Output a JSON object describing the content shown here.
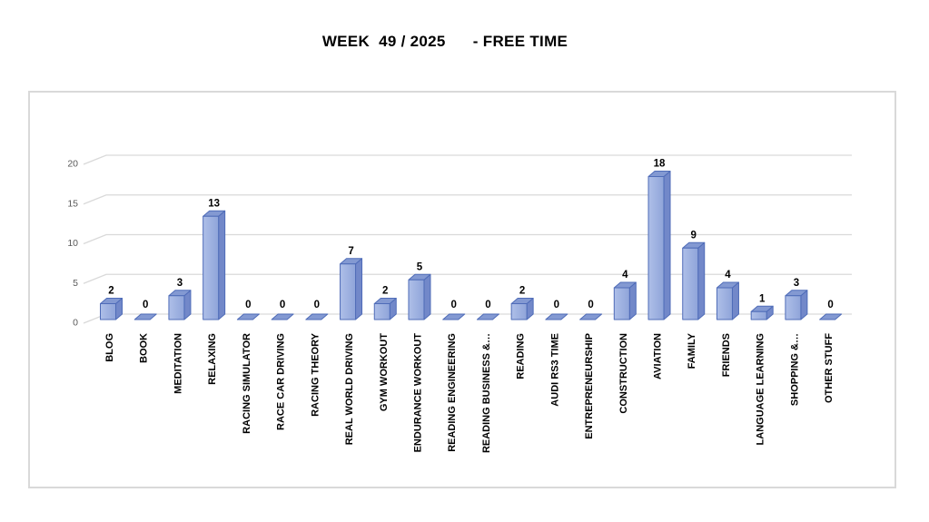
{
  "title": "WEEK  49 / 2025      - FREE TIME",
  "chart_data": {
    "type": "bar",
    "style": "3d-clustered-column",
    "title": "WEEK  49 / 2025      - FREE TIME",
    "categories": [
      "BLOG",
      "BOOK",
      "MEDITATION",
      "RELAXING",
      "RACING SIMULATOR",
      "RACE CAR DRIVING",
      "RACING THEORY",
      "REAL WORLD DRIVING",
      "GYM WORKOUT",
      "ENDURANCE WORKOUT",
      "READING ENGINEERING",
      "READING BUSINESS &…",
      "READING",
      "AUDI RS3 TIME",
      "ENTREPRENEURSHIP",
      "CONSTRUCTION",
      "AVIATION",
      "FAMILY",
      "FRIENDS",
      "LANGUAGE LEARNING",
      "SHOPPING &…",
      "OTHER STUFF"
    ],
    "values": [
      2,
      0,
      3,
      13,
      0,
      0,
      0,
      7,
      2,
      5,
      0,
      0,
      2,
      0,
      0,
      4,
      18,
      9,
      4,
      1,
      3,
      0
    ],
    "data_labels": true,
    "xlabel": "",
    "ylabel": "",
    "ylim": [
      0,
      20
    ],
    "yticks": [
      "0",
      "5",
      "10",
      "15",
      "20"
    ],
    "grid": true,
    "legend": false,
    "colors": {
      "bar_front_light": "#aebfe8",
      "bar_front_dark": "#8fa4d9",
      "bar_side": "#7288c9",
      "bar_top": "#8399d2",
      "bar_border": "#4f6cb8",
      "gridline": "#d9d9d9",
      "axis_text": "#595959",
      "data_label_text": "#000000",
      "category_text": "#000000",
      "frame_border": "#d9d9d9",
      "background": "#ffffff"
    }
  }
}
